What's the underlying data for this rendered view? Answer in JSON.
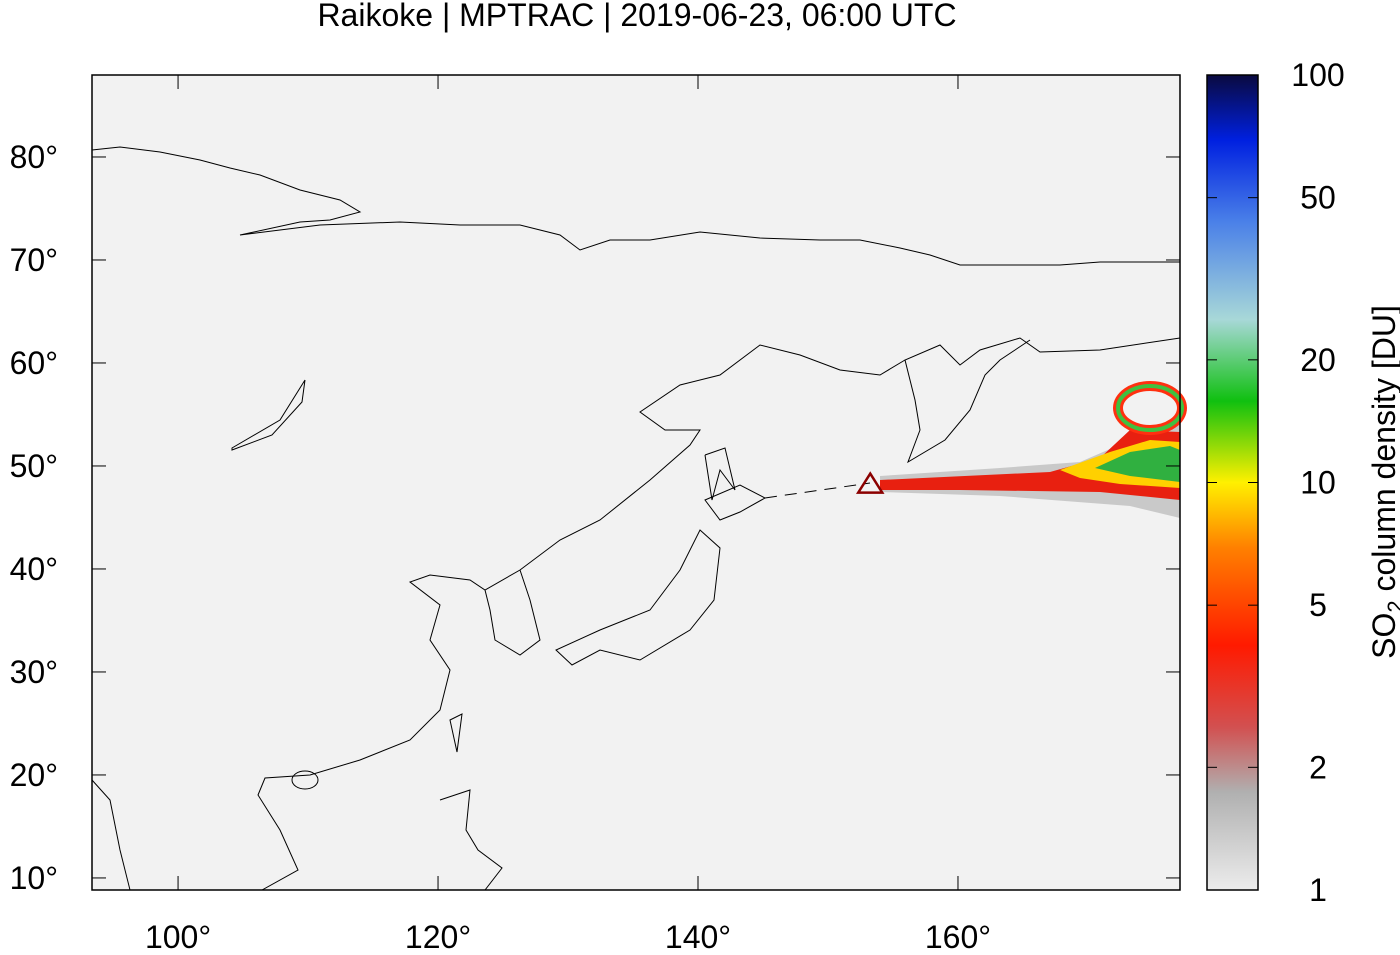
{
  "title": "Raikoke | MPTRAC | 2019-06-23, 06:00 UTC",
  "map": {
    "xlim": [
      93.38,
      177.08
    ],
    "ylim": [
      8.83,
      87.96
    ],
    "xticks": [
      {
        "value": 100,
        "label": "100°"
      },
      {
        "value": 120,
        "label": "120°"
      },
      {
        "value": 140,
        "label": "140°"
      },
      {
        "value": 160,
        "label": "160°"
      }
    ],
    "yticks": [
      {
        "value": 10,
        "label": "10°"
      },
      {
        "value": 20,
        "label": "20°"
      },
      {
        "value": 30,
        "label": "30°"
      },
      {
        "value": 40,
        "label": "40°"
      },
      {
        "value": 50,
        "label": "50°"
      },
      {
        "value": 60,
        "label": "60°"
      },
      {
        "value": 70,
        "label": "70°"
      },
      {
        "value": 80,
        "label": "80°"
      }
    ],
    "volcano": {
      "lon": 153.25,
      "lat": 48.29,
      "color": "#8b0000"
    }
  },
  "colorbar": {
    "scale": "log",
    "lim": [
      1,
      100
    ],
    "ticks": [
      1,
      2,
      5,
      10,
      20,
      50,
      100
    ],
    "label": [
      "SO",
      "2",
      " column density [DU]"
    ]
  }
}
